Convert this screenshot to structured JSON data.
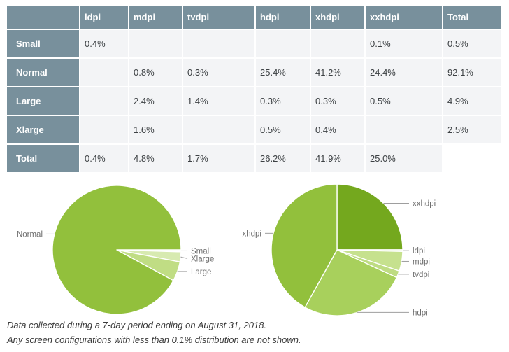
{
  "colors": {
    "header_bg": "#78909c",
    "header_text": "#ffffff",
    "cell_bg": "#f3f4f6",
    "value_text": "#3c4043",
    "label_text": "#6e6e6e",
    "leader_line": "#9e9e9e",
    "footnote_text": "#3a3a3a",
    "brand_green": "#92c03c"
  },
  "table": {
    "columns": [
      "",
      "ldpi",
      "mdpi",
      "tvdpi",
      "hdpi",
      "xhdpi",
      "xxhdpi",
      "Total"
    ],
    "rows": [
      {
        "label": "Small",
        "values": [
          "0.4%",
          "",
          "",
          "",
          "",
          "0.1%",
          "0.5%"
        ]
      },
      {
        "label": "Normal",
        "values": [
          "",
          "0.8%",
          "0.3%",
          "25.4%",
          "41.2%",
          "24.4%",
          "92.1%"
        ]
      },
      {
        "label": "Large",
        "values": [
          "",
          "2.4%",
          "1.4%",
          "0.3%",
          "0.3%",
          "0.5%",
          "4.9%"
        ]
      },
      {
        "label": "Xlarge",
        "values": [
          "",
          "1.6%",
          "",
          "0.5%",
          "0.4%",
          "",
          "2.5%"
        ]
      },
      {
        "label": "Total",
        "values": [
          "0.4%",
          "4.8%",
          "1.7%",
          "26.2%",
          "41.9%",
          "25.0%",
          null
        ]
      }
    ]
  },
  "chart_data": [
    {
      "type": "pie",
      "name": "screen-sizes",
      "units": "percent",
      "direction": "clockwise",
      "start_angle_deg_from_12": 90,
      "legend_position": "callout-labels",
      "slices": [
        {
          "label": "Small",
          "value": 0.5,
          "color": "#e9f4dc"
        },
        {
          "label": "Xlarge",
          "value": 2.5,
          "color": "#d7eab0"
        },
        {
          "label": "Large",
          "value": 4.9,
          "color": "#c0dd84"
        },
        {
          "label": "Normal",
          "value": 92.1,
          "color": "#92c03c"
        }
      ]
    },
    {
      "type": "pie",
      "name": "screen-densities",
      "units": "percent",
      "direction": "clockwise",
      "start_angle_deg_from_12": 0,
      "legend_position": "callout-labels",
      "slices": [
        {
          "label": "xxhdpi",
          "value": 25.0,
          "color": "#74a81e"
        },
        {
          "label": "ldpi",
          "value": 0.4,
          "color": "#dcedc3"
        },
        {
          "label": "mdpi",
          "value": 4.8,
          "color": "#c6e18e"
        },
        {
          "label": "tvdpi",
          "value": 1.7,
          "color": "#bedc82"
        },
        {
          "label": "hdpi",
          "value": 26.2,
          "color": "#a8d05c"
        },
        {
          "label": "xhdpi",
          "value": 41.9,
          "color": "#92c03c"
        }
      ]
    }
  ],
  "footer": {
    "line1": "Data collected during a 7-day period ending on August 31, 2018.",
    "line2": "Any screen configurations with less than 0.1% distribution are not shown."
  }
}
